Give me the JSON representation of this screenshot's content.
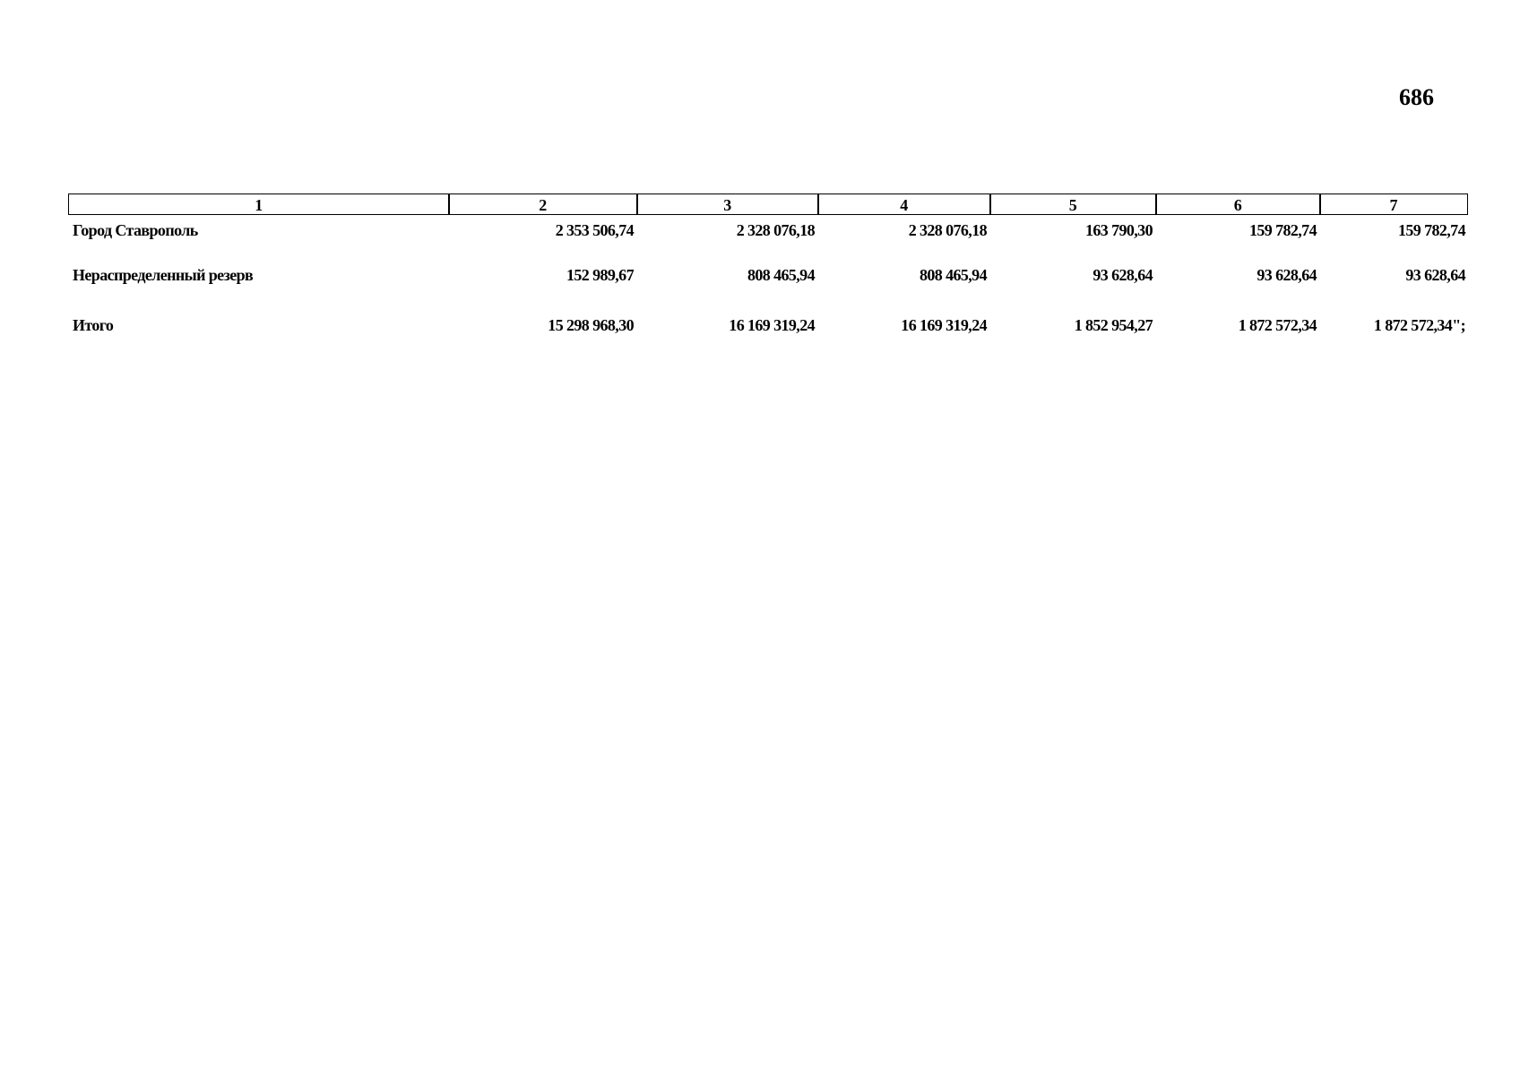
{
  "page_number": "686",
  "table": {
    "header": [
      "1",
      "2",
      "3",
      "4",
      "5",
      "6",
      "7"
    ],
    "rows": [
      [
        "Город Ставрополь",
        "2 353 506,74",
        "2 328 076,18",
        "2 328 076,18",
        "163 790,30",
        "159 782,74",
        "159 782,74"
      ],
      [
        "Нераспределенный резерв",
        "152 989,67",
        "808 465,94",
        "808 465,94",
        "93 628,64",
        "93 628,64",
        "93 628,64"
      ],
      [
        "Итого",
        "15 298 968,30",
        "16 169 319,24",
        "16 169 319,24",
        "1 852 954,27",
        "1 872 572,34",
        "1 872 572,34\";"
      ]
    ]
  }
}
